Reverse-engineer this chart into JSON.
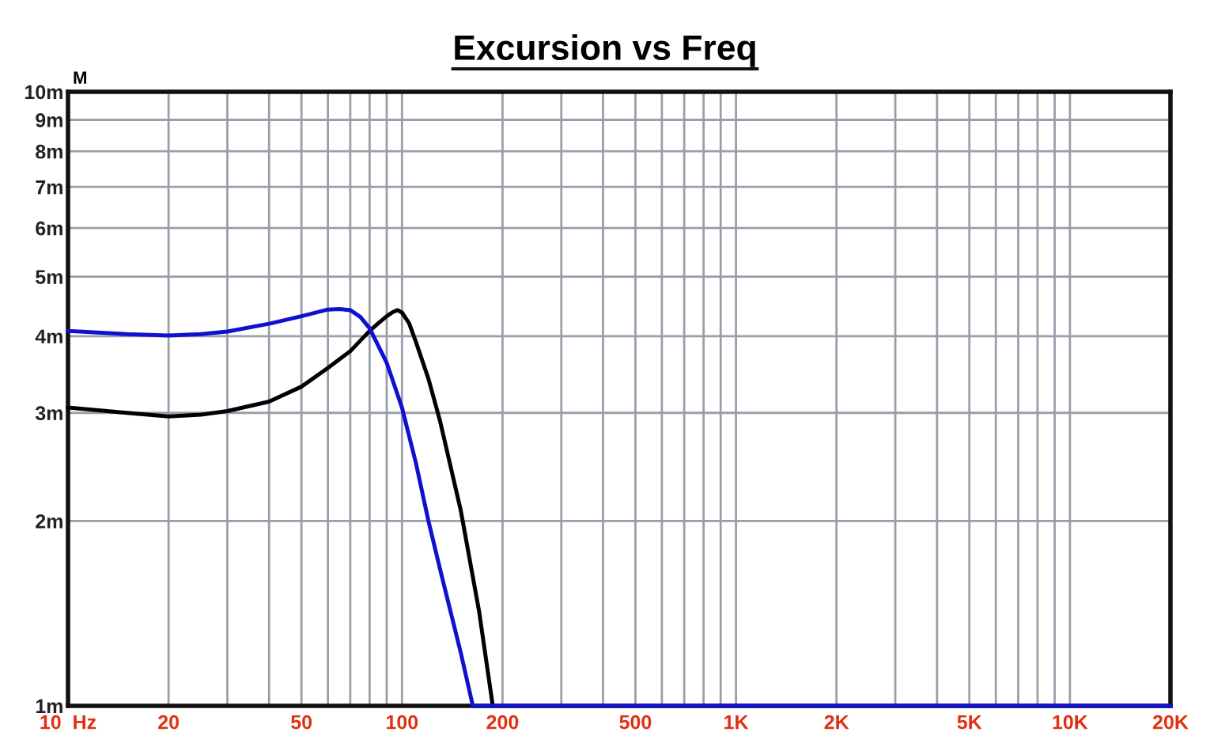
{
  "chart_data": {
    "type": "line",
    "title": "Excursion vs Freq",
    "ylabel": "M",
    "log": "xy",
    "grid": true,
    "marker": "none",
    "line_style": "solid",
    "xlim": [
      10,
      20000
    ],
    "ylim": [
      1,
      10
    ],
    "xticks": [
      {
        "value": 10,
        "label": "10  Hz"
      },
      {
        "value": 20,
        "label": "20"
      },
      {
        "value": 30,
        "label": null
      },
      {
        "value": 40,
        "label": null
      },
      {
        "value": 50,
        "label": "50"
      },
      {
        "value": 60,
        "label": null
      },
      {
        "value": 70,
        "label": null
      },
      {
        "value": 80,
        "label": null
      },
      {
        "value": 90,
        "label": null
      },
      {
        "value": 100,
        "label": "100"
      },
      {
        "value": 200,
        "label": "200"
      },
      {
        "value": 300,
        "label": null
      },
      {
        "value": 400,
        "label": null
      },
      {
        "value": 500,
        "label": "500"
      },
      {
        "value": 600,
        "label": null
      },
      {
        "value": 700,
        "label": null
      },
      {
        "value": 800,
        "label": null
      },
      {
        "value": 900,
        "label": null
      },
      {
        "value": 1000,
        "label": "1K"
      },
      {
        "value": 2000,
        "label": "2K"
      },
      {
        "value": 3000,
        "label": null
      },
      {
        "value": 4000,
        "label": null
      },
      {
        "value": 5000,
        "label": "5K"
      },
      {
        "value": 6000,
        "label": null
      },
      {
        "value": 7000,
        "label": null
      },
      {
        "value": 8000,
        "label": null
      },
      {
        "value": 9000,
        "label": null
      },
      {
        "value": 10000,
        "label": "10K"
      },
      {
        "value": 20000,
        "label": "20K"
      }
    ],
    "yticks": [
      {
        "value": 1,
        "label": "1m"
      },
      {
        "value": 2,
        "label": "2m"
      },
      {
        "value": 3,
        "label": "3m"
      },
      {
        "value": 4,
        "label": "4m"
      },
      {
        "value": 5,
        "label": "5m"
      },
      {
        "value": 6,
        "label": "6m"
      },
      {
        "value": 7,
        "label": "7m"
      },
      {
        "value": 8,
        "label": "8m"
      },
      {
        "value": 9,
        "label": "9m"
      },
      {
        "value": 10,
        "label": "10m"
      }
    ],
    "series": [
      {
        "color": "#000000",
        "x": [
          10,
          15,
          20,
          25,
          30,
          40,
          50,
          60,
          70,
          80,
          85,
          90,
          94,
          97,
          100,
          105,
          110,
          120,
          130,
          150,
          170,
          187
        ],
        "values": [
          3.06,
          3.0,
          2.96,
          2.98,
          3.02,
          3.13,
          3.31,
          3.55,
          3.78,
          4.08,
          4.2,
          4.31,
          4.38,
          4.41,
          4.37,
          4.2,
          3.92,
          3.41,
          2.91,
          2.08,
          1.43,
          1.0
        ]
      },
      {
        "color": "#1010d0",
        "x": [
          10,
          15,
          20,
          25,
          30,
          40,
          50,
          60,
          65,
          70,
          75,
          80,
          90,
          100,
          110,
          120,
          130,
          150,
          163,
          20000
        ],
        "values": [
          4.08,
          4.03,
          4.01,
          4.03,
          4.07,
          4.19,
          4.31,
          4.42,
          4.43,
          4.41,
          4.3,
          4.12,
          3.62,
          3.06,
          2.49,
          2.0,
          1.67,
          1.22,
          1.0,
          1.0
        ]
      }
    ]
  }
}
